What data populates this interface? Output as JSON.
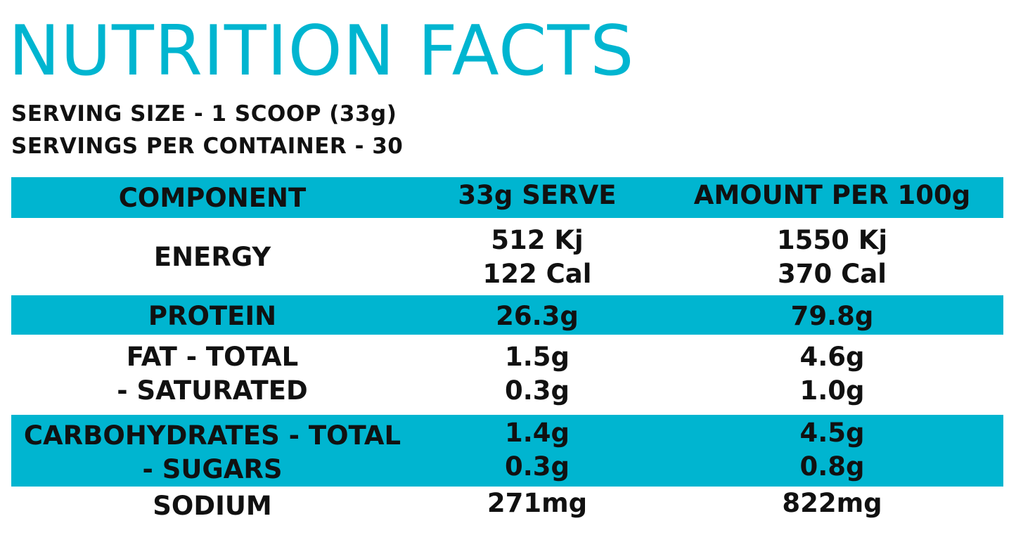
{
  "title": "NUTRITION FACTS",
  "serving_size": "SERVING SIZE - 1 SCOOP (33g)",
  "servings_per_container": "SERVINGS PER CONTAINER - 30",
  "colors": {
    "accent": "#00b5d0",
    "text": "#111111"
  },
  "table": {
    "headers": [
      "COMPONENT",
      "33g SERVE",
      "AMOUNT PER 100g"
    ],
    "rows": [
      {
        "component": [
          "ENERGY"
        ],
        "serve": [
          "512 Kj",
          "122 Cal"
        ],
        "per100": [
          "1550 Kj",
          "370 Cal"
        ]
      },
      {
        "component": [
          "PROTEIN"
        ],
        "serve": [
          "26.3g"
        ],
        "per100": [
          "79.8g"
        ]
      },
      {
        "component": [
          "FAT - TOTAL",
          "- SATURATED"
        ],
        "serve": [
          "1.5g",
          "0.3g"
        ],
        "per100": [
          "4.6g",
          "1.0g"
        ]
      },
      {
        "component": [
          "CARBOHYDRATES - TOTAL",
          "- SUGARS"
        ],
        "serve": [
          "1.4g",
          "0.3g"
        ],
        "per100": [
          "4.5g",
          "0.8g"
        ]
      },
      {
        "component": [
          "SODIUM"
        ],
        "serve": [
          "271mg"
        ],
        "per100": [
          "822mg"
        ]
      }
    ]
  }
}
